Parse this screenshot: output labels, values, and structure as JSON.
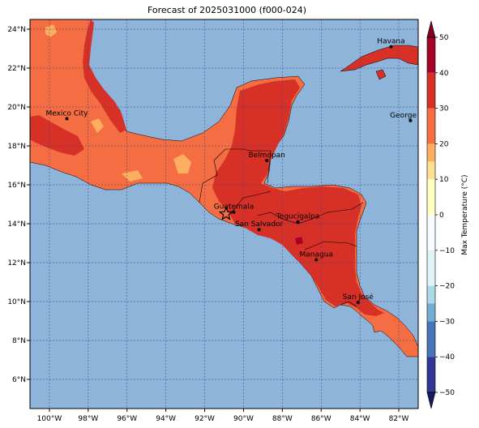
{
  "title": "Forecast of 2025031000 (f000-024)",
  "map": {
    "lon_range": [
      -101,
      -81
    ],
    "lat_range": [
      4.5,
      24.5
    ],
    "ocean_color": "#8fb4da",
    "x_ticks": [
      {
        "lon": -100,
        "label": "100°W"
      },
      {
        "lon": -98,
        "label": "98°W"
      },
      {
        "lon": -96,
        "label": "96°W"
      },
      {
        "lon": -94,
        "label": "94°W"
      },
      {
        "lon": -92,
        "label": "92°W"
      },
      {
        "lon": -90,
        "label": "90°W"
      },
      {
        "lon": -88,
        "label": "88°W"
      },
      {
        "lon": -86,
        "label": "86°W"
      },
      {
        "lon": -84,
        "label": "84°W"
      },
      {
        "lon": -82,
        "label": "82°W"
      }
    ],
    "y_ticks": [
      {
        "lat": 6,
        "label": "6°N"
      },
      {
        "lat": 8,
        "label": "8°N"
      },
      {
        "lat": 10,
        "label": "10°N"
      },
      {
        "lat": 12,
        "label": "12°N"
      },
      {
        "lat": 14,
        "label": "14°N"
      },
      {
        "lat": 16,
        "label": "16°N"
      },
      {
        "lat": 18,
        "label": "18°N"
      },
      {
        "lat": 20,
        "label": "20°N"
      },
      {
        "lat": 22,
        "label": "22°N"
      },
      {
        "lat": 24,
        "label": "24°N"
      }
    ],
    "cities": [
      {
        "name": "Havana",
        "lon": -82.4,
        "lat": 23.1
      },
      {
        "name": "Mexico City",
        "lon": -99.1,
        "lat": 19.4
      },
      {
        "name": "George Tov",
        "lon": -81.4,
        "lat": 19.3
      },
      {
        "name": "Belmopan",
        "lon": -88.8,
        "lat": 17.25
      },
      {
        "name": "Guatemala",
        "lon": -90.5,
        "lat": 14.6
      },
      {
        "name": "San Salvador",
        "lon": -89.2,
        "lat": 13.7
      },
      {
        "name": "Tegucigalpa",
        "lon": -87.2,
        "lat": 14.1
      },
      {
        "name": "Managua",
        "lon": -86.25,
        "lat": 12.15
      },
      {
        "name": "San José",
        "lon": -84.1,
        "lat": 9.95
      }
    ],
    "star_marker": {
      "lon": -90.9,
      "lat": 14.5
    }
  },
  "colorbar": {
    "label": "Max Temperature (°C)",
    "min": -50,
    "max": 50,
    "ticks": [
      {
        "value": 50,
        "label": "50"
      },
      {
        "value": 40,
        "label": "40"
      },
      {
        "value": 30,
        "label": "30"
      },
      {
        "value": 20,
        "label": "20"
      },
      {
        "value": 10,
        "label": "10"
      },
      {
        "value": 0,
        "label": "0"
      },
      {
        "value": -10,
        "label": "−10"
      },
      {
        "value": -20,
        "label": "−20"
      },
      {
        "value": -30,
        "label": "−30"
      },
      {
        "value": -40,
        "label": "−40"
      },
      {
        "value": -50,
        "label": "−50"
      }
    ],
    "bins": [
      {
        "from": 40,
        "to": 50,
        "color": "#a50026"
      },
      {
        "from": 30,
        "to": 40,
        "color": "#d73027"
      },
      {
        "from": 20,
        "to": 30,
        "color": "#f46d43"
      },
      {
        "from": 15,
        "to": 20,
        "color": "#fdae61"
      },
      {
        "from": 10,
        "to": 15,
        "color": "#fee090"
      },
      {
        "from": 0,
        "to": 10,
        "color": "#ffffbf"
      },
      {
        "from": -10,
        "to": 0,
        "color": "#f7fbff"
      },
      {
        "from": -20,
        "to": -10,
        "color": "#e0f3f8"
      },
      {
        "from": -25,
        "to": -20,
        "color": "#abd9e9"
      },
      {
        "from": -30,
        "to": -25,
        "color": "#74add1"
      },
      {
        "from": -40,
        "to": -30,
        "color": "#4575b4"
      },
      {
        "from": -50,
        "to": -40,
        "color": "#313695"
      }
    ],
    "extend_top_color": "#800020",
    "extend_bottom_color": "#1a1a5e"
  }
}
